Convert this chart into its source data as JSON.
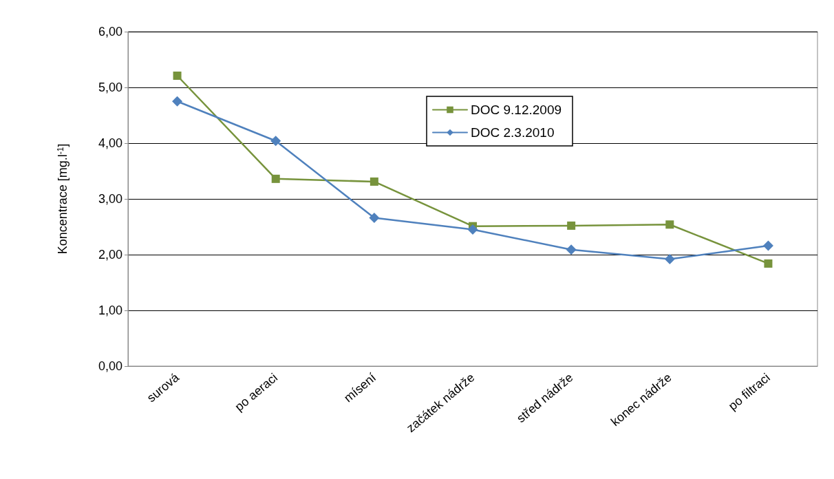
{
  "chart_data": {
    "type": "line",
    "ylabel": "Koncentrace [mg.l$^{-1}$]",
    "categories": [
      "surová",
      "po aeraci",
      "mísení",
      "začátek nádrže",
      "střed nádrže",
      "konec nádrže",
      "po filtraci"
    ],
    "series": [
      {
        "name": "DOC 9.12.2009",
        "color": "#77933c",
        "marker": "square",
        "values": [
          5.21,
          3.36,
          3.31,
          2.51,
          2.52,
          2.54,
          1.84
        ]
      },
      {
        "name": "DOC 2.3.2010",
        "color": "#4f81bd",
        "marker": "diamond",
        "values": [
          4.75,
          4.04,
          2.66,
          2.45,
          2.09,
          1.92,
          2.16
        ]
      }
    ],
    "ylim": [
      0,
      6
    ],
    "yticks": [
      {
        "value": 0,
        "label": "0,00"
      },
      {
        "value": 1,
        "label": "1,00"
      },
      {
        "value": 2,
        "label": "2,00"
      },
      {
        "value": 3,
        "label": "3,00"
      },
      {
        "value": 4,
        "label": "4,00"
      },
      {
        "value": 5,
        "label": "5,00"
      },
      {
        "value": 6,
        "label": "6,00"
      }
    ],
    "grid": "y",
    "legend": "top right",
    "line_style": "solid"
  }
}
